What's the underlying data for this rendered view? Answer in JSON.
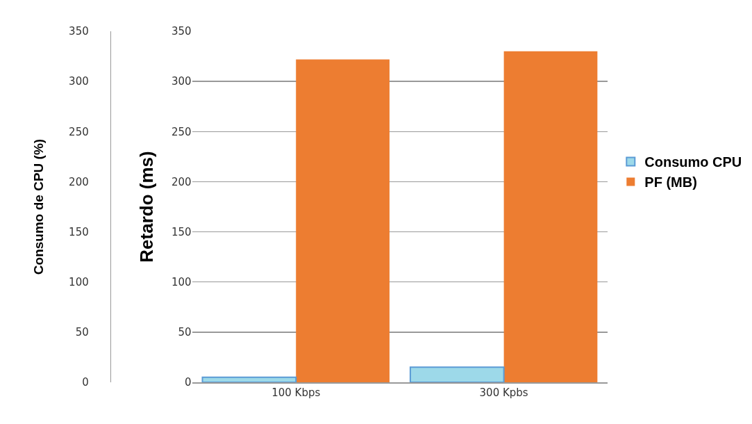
{
  "chart_data": {
    "type": "bar",
    "categories": [
      "100 Kbps",
      "300 Kpbs"
    ],
    "series": [
      {
        "name": "Consumo CPU",
        "color": "#9dd9e9",
        "values": [
          5,
          15
        ],
        "axis": "y2"
      },
      {
        "name": "PF (MB)",
        "color": "#ed7d31",
        "values": [
          322,
          330
        ]
      }
    ],
    "ylabel": "Retardo (ms)",
    "y2label": "Consumo de CPU (%)",
    "ylim": [
      0,
      350
    ],
    "yticks": [
      0,
      50,
      100,
      150,
      200,
      250,
      300,
      350
    ],
    "y2lim": [
      0,
      350
    ],
    "y2ticks": [
      0,
      50,
      100,
      150,
      200,
      250,
      300,
      350
    ],
    "grid": "y",
    "legend": "right"
  }
}
